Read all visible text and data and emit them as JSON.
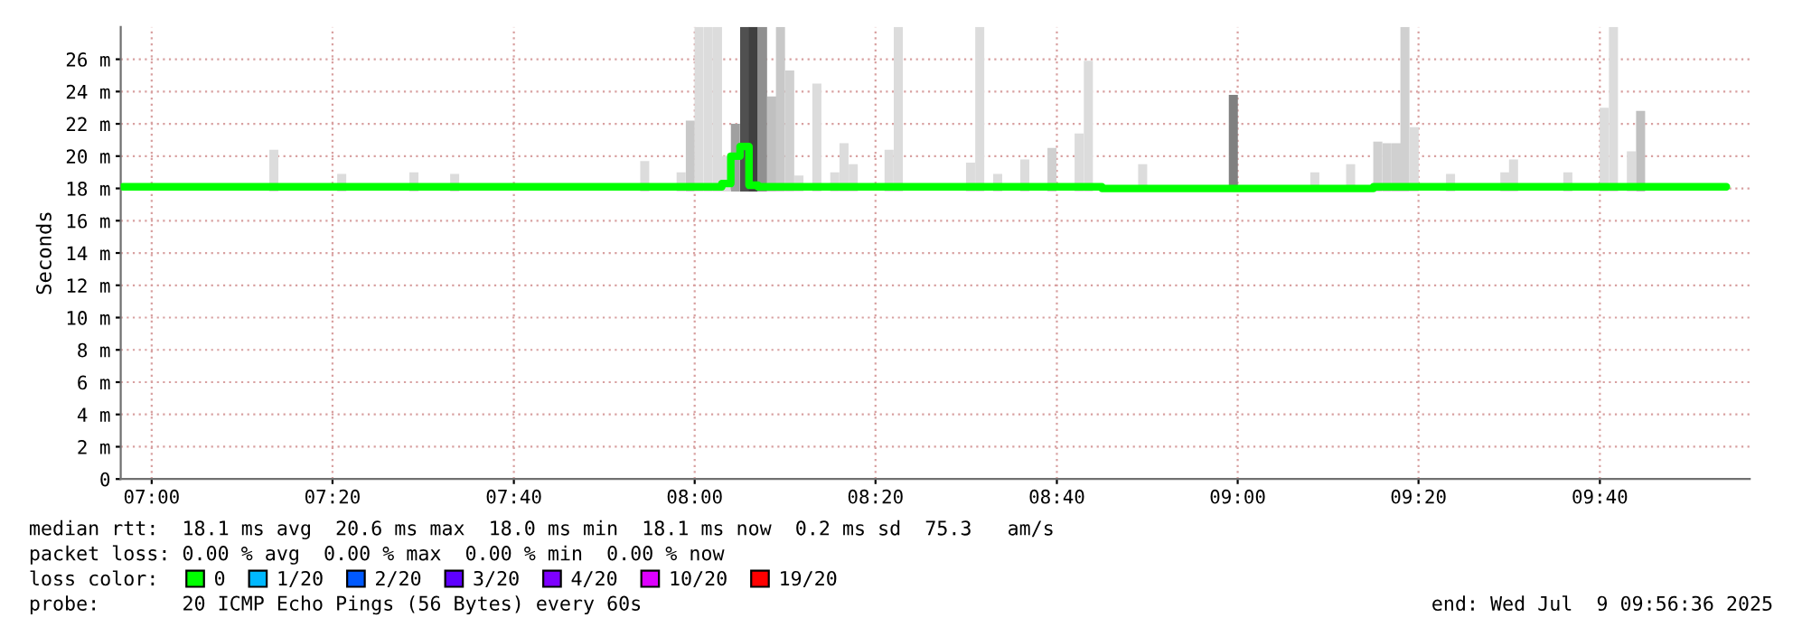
{
  "chart_data": {
    "type": "bar",
    "ylabel": "Seconds",
    "xlim": [
      6.943,
      9.943
    ],
    "xticks": [
      {
        "value": 7.0,
        "label": "07:00"
      },
      {
        "value": 7.333,
        "label": "07:20"
      },
      {
        "value": 7.667,
        "label": "07:40"
      },
      {
        "value": 8.0,
        "label": "08:00"
      },
      {
        "value": 8.333,
        "label": "08:20"
      },
      {
        "value": 8.667,
        "label": "08:40"
      },
      {
        "value": 9.0,
        "label": "09:00"
      },
      {
        "value": 9.333,
        "label": "09:20"
      },
      {
        "value": 9.667,
        "label": "09:40"
      }
    ],
    "ylim": [
      0,
      28
    ],
    "yticks": [
      {
        "value": 0,
        "label": "0"
      },
      {
        "value": 2,
        "label": "2 m"
      },
      {
        "value": 4,
        "label": "4 m"
      },
      {
        "value": 6,
        "label": "6 m"
      },
      {
        "value": 8,
        "label": "8 m"
      },
      {
        "value": 10,
        "label": "10 m"
      },
      {
        "value": 12,
        "label": "12 m"
      },
      {
        "value": 14,
        "label": "14 m"
      },
      {
        "value": 16,
        "label": "16 m"
      },
      {
        "value": 18,
        "label": "18 m"
      },
      {
        "value": 20,
        "label": "20 m"
      },
      {
        "value": 22,
        "label": "22 m"
      },
      {
        "value": 24,
        "label": "24 m"
      },
      {
        "value": 26,
        "label": "26 m"
      }
    ],
    "grid": true,
    "legend": "bottom",
    "legend_title": "loss color:",
    "series": [
      {
        "x": [
          7.225,
          7.35,
          7.483,
          7.558,
          7.908,
          7.975,
          7.992,
          8.008,
          8.025,
          8.042,
          8.058,
          8.075,
          8.092,
          8.108,
          8.125,
          8.142,
          8.158,
          8.175,
          8.192,
          8.225,
          8.258,
          8.275,
          8.292,
          8.358,
          8.375,
          8.508,
          8.525,
          8.558,
          8.608,
          8.658,
          8.708,
          8.725,
          8.825,
          8.992,
          9.142,
          9.208,
          9.258,
          9.275,
          9.292,
          9.308,
          9.325,
          9.392,
          9.492,
          9.508,
          9.608,
          9.675,
          9.692,
          9.725,
          9.742
        ],
        "base": [
          17.8,
          17.8,
          17.8,
          17.8,
          17.8,
          17.8,
          17.8,
          17.8,
          17.8,
          17.8,
          17.8,
          17.8,
          17.8,
          17.8,
          17.8,
          17.8,
          17.8,
          17.8,
          17.8,
          17.8,
          17.8,
          17.8,
          17.8,
          17.8,
          17.8,
          17.8,
          17.8,
          17.8,
          17.8,
          17.8,
          17.8,
          17.8,
          17.8,
          17.8,
          17.8,
          17.8,
          17.8,
          17.8,
          17.8,
          17.8,
          17.8,
          17.8,
          17.8,
          17.8,
          17.8,
          17.8,
          17.8,
          17.8,
          17.8
        ],
        "values": [
          2.6,
          1.1,
          1.2,
          1.1,
          1.9,
          1.2,
          4.4,
          10.2,
          10.2,
          10.2,
          2.2,
          4.2,
          10.2,
          10.2,
          10.2,
          5.9,
          10.2,
          7.5,
          1.0,
          6.7,
          1.2,
          3.0,
          1.7,
          2.6,
          10.2,
          1.8,
          10.2,
          1.1,
          2.0,
          2.7,
          3.6,
          8.1,
          1.7,
          6.0,
          1.2,
          1.7,
          3.1,
          3.0,
          3.0,
          10.2,
          4.0,
          1.1,
          1.2,
          2.0,
          1.2,
          5.2,
          10.2,
          2.5,
          5.0
        ],
        "colors": [
          "#dcdcdc",
          "#dcdcdc",
          "#dcdcdc",
          "#dcdcdc",
          "#dcdcdc",
          "#dcdcdc",
          "#c8c8c8",
          "#dcdcdc",
          "#dcdcdc",
          "#dcdcdc",
          "#dcdcdc",
          "#a0a0a0",
          "#505050",
          "#404040",
          "#909090",
          "#c0c0c0",
          "#c8c8c8",
          "#d0d0d0",
          "#dcdcdc",
          "#dcdcdc",
          "#dcdcdc",
          "#dcdcdc",
          "#dcdcdc",
          "#dcdcdc",
          "#dcdcdc",
          "#dcdcdc",
          "#dcdcdc",
          "#dcdcdc",
          "#dcdcdc",
          "#d0d0d0",
          "#dcdcdc",
          "#dcdcdc",
          "#dcdcdc",
          "#808080",
          "#dcdcdc",
          "#dcdcdc",
          "#d0d0d0",
          "#d0d0d0",
          "#d0d0d0",
          "#d0d0d0",
          "#dcdcdc",
          "#dcdcdc",
          "#dcdcdc",
          "#dcdcdc",
          "#dcdcdc",
          "#dcdcdc",
          "#dcdcdc",
          "#dcdcdc",
          "#c0c0c0"
        ]
      },
      {
        "type": "step",
        "name": "0",
        "color": "#00ff00",
        "x": [
          6.947,
          7.5,
          8.0,
          8.042,
          8.058,
          8.075,
          8.092,
          8.108,
          8.125,
          8.5,
          9.0,
          9.5,
          9.9
        ],
        "values": [
          18.1,
          18.1,
          18.1,
          18.1,
          18.3,
          20.0,
          20.6,
          18.2,
          18.1,
          18.1,
          18.0,
          18.1,
          18.1
        ]
      },
      {
        "type": "step",
        "name": "1/20",
        "color": "#00b8ff"
      },
      {
        "type": "step",
        "name": "2/20",
        "color": "#0059ff"
      },
      {
        "type": "step",
        "name": "3/20",
        "color": "#5e00ff"
      },
      {
        "type": "step",
        "name": "4/20",
        "color": "#7e00ff"
      },
      {
        "type": "step",
        "name": "10/20",
        "color": "#dd00ff"
      },
      {
        "type": "step",
        "name": "19/20",
        "color": "#ff0000"
      }
    ],
    "annotations": [
      "median rtt:  18.1 ms avg  20.6 ms max  18.0 ms min  18.1 ms now  0.2 ms sd  75.3   am/s",
      "packet loss: 0.00 % avg  0.00 % max  0.00 % min  0.00 % now",
      "probe:       20 ICMP Echo Pings (56 Bytes) every 60s",
      "end: Wed Jul  9 09:56:36 2025"
    ]
  }
}
